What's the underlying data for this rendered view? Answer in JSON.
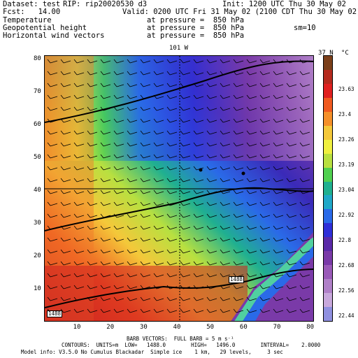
{
  "header": {
    "dataset": "Dataset: test",
    "rip": "RIP: rip20020530 d3",
    "init": "Init: 1200 UTC Thu 30 May 02",
    "fcst": "Fcst:   14.00",
    "valid": "Valid: 0200 UTC Fri 31 May 02 (2100 CDT Thu 30 May 02)",
    "row1_name": "Temperature",
    "row1_pressure": "at pressure =  850 hPa",
    "row2_name": "Geopotential height",
    "row2_pressure": "at pressure =  850 hPa",
    "row2_extra": "sm=10",
    "row3_name": "Horizontal wind vectors",
    "row3_pressure": "at pressure =  850 hPa"
  },
  "map": {
    "lon_label": "101 W",
    "lat_label": "37 N",
    "unit_label": "°C",
    "x_ticks": [
      "10",
      "20",
      "30",
      "40",
      "50",
      "60",
      "70",
      "80"
    ],
    "y_ticks": [
      "10",
      "20",
      "30",
      "40",
      "50",
      "60",
      "70",
      "80"
    ],
    "contour_labels": [
      "1488",
      "1488"
    ]
  },
  "colorbar": {
    "labels": [
      "23.63",
      "23.4",
      "23.26",
      "23.19",
      "23.04",
      "22.92",
      "22.8",
      "22.68",
      "22.56",
      "22.44"
    ],
    "colors": [
      "#7b3f1a",
      "#b52a1e",
      "#e02020",
      "#f05a20",
      "#f5902a",
      "#f4c83a",
      "#f0f040",
      "#b8e040",
      "#50d050",
      "#20b090",
      "#20a8c8",
      "#2a6ae8",
      "#2f2fd8",
      "#5a2aa8",
      "#7a3aa8",
      "#9a5ab8",
      "#b080c8",
      "#c8a8dc",
      "#9090e0"
    ]
  },
  "footer": {
    "barb": "BARB VECTORS:  FULL BARB = 5 m s⁻¹",
    "contours": "CONTOURS:  UNITS=m  LOW=   1488.0        HIGH=   1496.0        INTERVAL=    2.0000",
    "model": "Model info: V3.5.0 No Cumulus Blackadar  Simple ice    1 km,   29 levels,     3 sec"
  }
}
